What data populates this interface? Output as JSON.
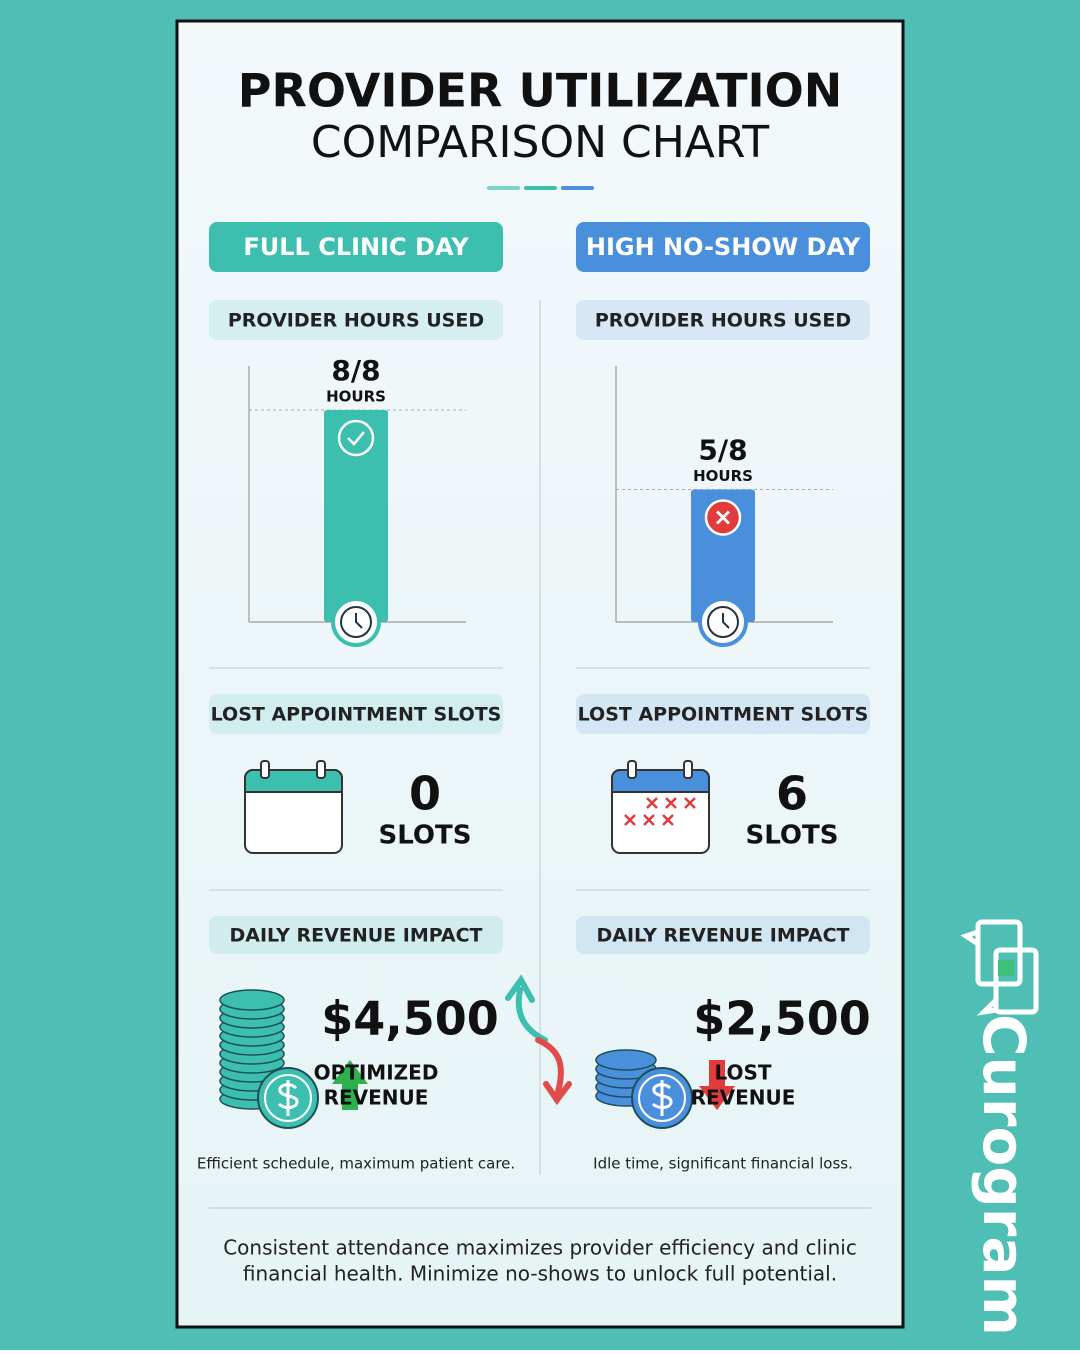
{
  "title": [
    "PROVIDER UTILIZATION",
    "COMPARISON CHART"
  ],
  "panels": [
    {
      "heading": "FULL CLINIC DAY",
      "color": "#3dbfb0",
      "hours_heading": "PROVIDER HOURS USED",
      "hours_used": 8,
      "hours_total": 8,
      "hours_label": "8/8",
      "hours_unit": "HOURS",
      "status": "ok",
      "slots_heading": "LOST APPOINTMENT SLOTS",
      "slots": 0,
      "slots_unit": "SLOTS",
      "revenue_heading": "DAILY REVENUE IMPACT",
      "revenue": "$4,500",
      "trend": "up",
      "revenue_note": [
        "OPTIMIZED",
        "REVENUE"
      ],
      "caption": "Efficient schedule, maximum patient care."
    },
    {
      "heading": "HIGH NO-SHOW DAY",
      "color": "#4a8fdc",
      "hours_heading": "PROVIDER HOURS USED",
      "hours_used": 5,
      "hours_total": 8,
      "hours_label": "5/8",
      "hours_unit": "HOURS",
      "status": "bad",
      "slots_heading": "LOST APPOINTMENT SLOTS",
      "slots": 6,
      "slots_unit": "SLOTS",
      "revenue_heading": "DAILY REVENUE IMPACT",
      "revenue": "$2,500",
      "trend": "down",
      "revenue_note": [
        "LOST",
        "REVENUE"
      ],
      "caption": "Idle time, significant financial loss."
    }
  ],
  "footer": [
    "Consistent attendance maximizes provider efficiency and clinic",
    "financial health. Minimize no-shows to unlock full potential."
  ],
  "brand": "Curogram"
}
